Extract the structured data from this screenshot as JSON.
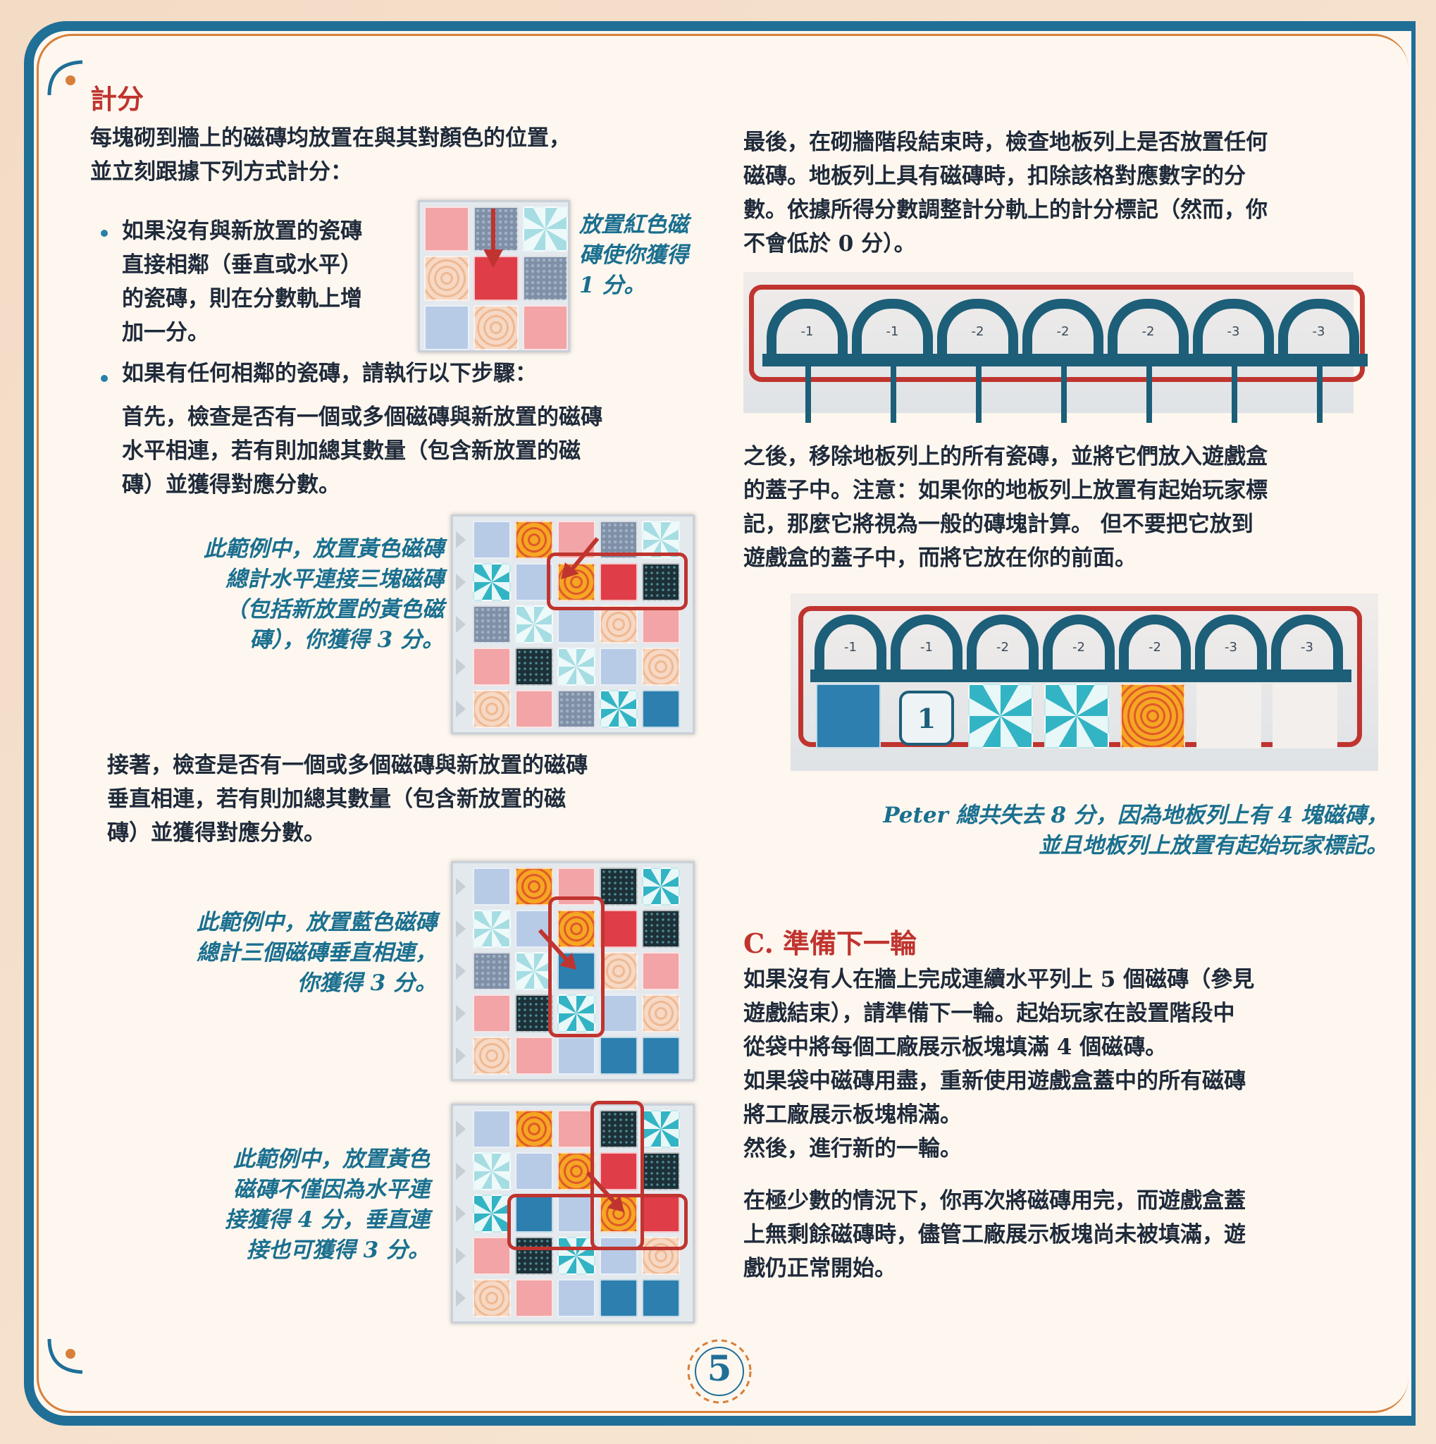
{
  "scoring": {
    "title": "計分",
    "intro_1": "每塊砌到牆上的磁磚均放置在與其對顏色的位置，",
    "intro_2": "並立刻跟據下列方式計分：",
    "bullet1": [
      "如果沒有與新放置的瓷磚",
      "直接相鄰（垂直或水平）",
      "的瓷磚，則在分數軌上增",
      "加一分。"
    ],
    "caption1": [
      "放置紅色磁",
      "磚使你獲得",
      "1 分。"
    ],
    "bullet2": "如果有任何相鄰的瓷磚，請執行以下步驟：",
    "first": [
      "首先，檢查是否有一個或多個磁磚與新放置的磁磚",
      "水平相連，若有則加總其數量（包含新放置的磁",
      "磚）並獲得對應分數。"
    ],
    "caption2": [
      "此範例中，放置黃色磁磚",
      "總計水平連接三塊磁磚",
      "（包括新放置的黃色磁",
      "磚），你獲得 3 分。"
    ],
    "then": [
      "接著，檢查是否有一個或多個磁磚與新放置的磁磚",
      "垂直相連，若有則加總其數量（包含新放置的磁",
      "磚）並獲得對應分數。"
    ],
    "caption3": [
      "此範例中，放置藍色磁磚",
      "總計三個磁磚垂直相連，",
      "你獲得 3 分。"
    ],
    "caption4": [
      "此範例中，放置黃色",
      "磁磚不僅因為水平連",
      "接獲得 4 分，垂直連",
      "接也可獲得 3 分。"
    ]
  },
  "floor": {
    "para1": [
      "最後，在砌牆階段結束時，檢查地板列上是否放置任何",
      "磁磚。地板列上具有磁磚時，扣除該格對應數字的分",
      "數。依據所得分數調整計分軌上的計分標記（然而，你",
      "不會低於 0 分）。"
    ],
    "penalties": [
      "-1",
      "-1",
      "-2",
      "-2",
      "-2",
      "-3",
      "-3"
    ],
    "para2": [
      "之後，移除地板列上的所有瓷磚，並將它們放入遊戲盒",
      "的蓋子中。注意：如果你的地板列上放置有起始玩家標",
      "記，那麼它將視為一般的磚塊計算。 但不要把它放到",
      "遊戲盒的蓋子中，而將它放在你的前面。"
    ],
    "first_player_marker": "1",
    "caption": [
      "Peter 總共失去 8 分，因為地板列上有 4 塊磁磚，",
      "並且地板列上放置有起始玩家標記。"
    ]
  },
  "next_round": {
    "title": "C. 準備下一輪",
    "para1": [
      "如果沒有人在牆上完成連續水平列上 5 個磁磚（參見",
      "遊戲結束），請準備下一輪。起始玩家在設置階段中",
      "從袋中將每個工廠展示板塊填滿 4 個磁磚。",
      "如果袋中磁磚用盡，重新使用遊戲盒蓋中的所有磁磚",
      "將工廠展示板塊棉滿。",
      "然後，進行新的一輪。"
    ],
    "para2": [
      "在極少數的情況下，你再次將磁磚用完，而遊戲盒蓋",
      "上無剩餘磁磚時，儘管工廠展示板塊尚未被填滿，遊",
      "戲仍正常開始。"
    ]
  },
  "page_number": "5",
  "colors": {
    "frame": "#1f6f97",
    "accent_red": "#c0342f",
    "caption_teal": "#1a6f8f"
  },
  "grids": {
    "g1": [
      [
        "pink",
        "grey",
        "pcyan"
      ],
      [
        "porange",
        "red",
        "grey"
      ],
      [
        "lblue",
        "porange",
        "pink"
      ]
    ],
    "g2": [
      [
        "lblue",
        "orange",
        "pink",
        "grey",
        "pcyan"
      ],
      [
        "cyan",
        "lblue",
        "orange",
        "red",
        "black"
      ],
      [
        "grey",
        "pcyan",
        "lblue",
        "porange",
        "pink"
      ],
      [
        "pink",
        "black",
        "pcyan",
        "lblue",
        "porange"
      ],
      [
        "porange",
        "pink",
        "grey",
        "cyan",
        "blue"
      ]
    ],
    "g3": [
      [
        "lblue",
        "orange",
        "pink",
        "black",
        "cyan"
      ],
      [
        "pcyan",
        "lblue",
        "orange",
        "red",
        "black"
      ],
      [
        "grey",
        "pcyan",
        "blue",
        "porange",
        "pink"
      ],
      [
        "pink",
        "black",
        "cyan",
        "lblue",
        "porange"
      ],
      [
        "porange",
        "pink",
        "lblue",
        "blue",
        "blue"
      ]
    ],
    "g4": [
      [
        "lblue",
        "orange",
        "pink",
        "black",
        "cyan"
      ],
      [
        "pcyan",
        "lblue",
        "orange",
        "red",
        "black"
      ],
      [
        "cyan",
        "blue",
        "lblue",
        "orange",
        "red"
      ],
      [
        "pink",
        "black",
        "cyan",
        "lblue",
        "porange"
      ],
      [
        "porange",
        "pink",
        "lblue",
        "blue",
        "blue"
      ]
    ]
  }
}
